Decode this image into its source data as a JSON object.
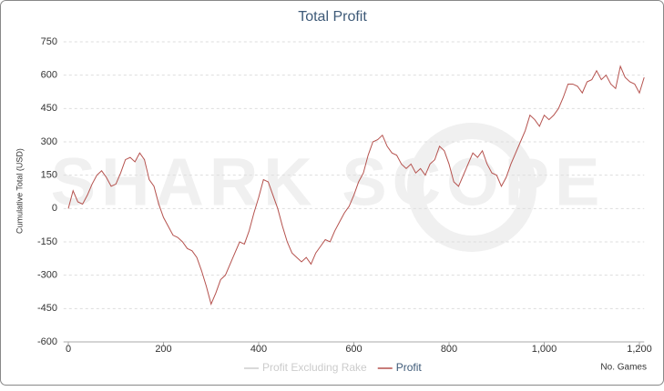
{
  "chart_data": {
    "type": "line",
    "title": "Total Profit",
    "y_label": "Cumulative Total (USD)",
    "x_label": "No. Games",
    "watermark": "SHARK SCOPE",
    "x": [
      0,
      10,
      20,
      30,
      40,
      50,
      60,
      70,
      80,
      90,
      100,
      110,
      120,
      130,
      140,
      150,
      160,
      170,
      180,
      190,
      200,
      210,
      220,
      230,
      240,
      250,
      260,
      270,
      280,
      290,
      300,
      310,
      320,
      330,
      340,
      350,
      360,
      370,
      380,
      390,
      400,
      410,
      420,
      430,
      440,
      450,
      460,
      470,
      480,
      490,
      500,
      510,
      520,
      530,
      540,
      550,
      560,
      570,
      580,
      590,
      600,
      610,
      620,
      630,
      640,
      650,
      660,
      670,
      680,
      690,
      700,
      710,
      720,
      730,
      740,
      750,
      760,
      770,
      780,
      790,
      800,
      810,
      820,
      830,
      840,
      850,
      860,
      870,
      880,
      890,
      900,
      910,
      920,
      930,
      940,
      950,
      960,
      970,
      980,
      990,
      1000,
      1010,
      1020,
      1030,
      1040,
      1050,
      1060,
      1070,
      1080,
      1090,
      1100,
      1110,
      1120,
      1130,
      1140,
      1150,
      1160,
      1170,
      1180,
      1190,
      1200,
      1210
    ],
    "series": [
      {
        "name": "Profit Excluding Rake",
        "color": "#cccccc",
        "visible": false
      },
      {
        "name": "Profit",
        "color": "#b5524e",
        "visible": true,
        "values": [
          0,
          80,
          30,
          20,
          60,
          110,
          150,
          170,
          140,
          100,
          110,
          160,
          220,
          230,
          210,
          250,
          220,
          130,
          100,
          20,
          -40,
          -80,
          -120,
          -130,
          -150,
          -180,
          -190,
          -220,
          -280,
          -350,
          -430,
          -380,
          -320,
          -300,
          -250,
          -200,
          -150,
          -160,
          -100,
          -20,
          50,
          130,
          120,
          60,
          0,
          -80,
          -150,
          -200,
          -220,
          -240,
          -220,
          -250,
          -200,
          -170,
          -140,
          -150,
          -100,
          -60,
          -20,
          10,
          60,
          120,
          160,
          240,
          300,
          310,
          330,
          280,
          250,
          240,
          200,
          180,
          200,
          160,
          180,
          150,
          200,
          220,
          280,
          260,
          200,
          120,
          100,
          150,
          200,
          250,
          230,
          260,
          200,
          160,
          150,
          100,
          140,
          200,
          250,
          300,
          350,
          420,
          400,
          370,
          420,
          400,
          420,
          450,
          500,
          560,
          560,
          550,
          520,
          570,
          580,
          620,
          580,
          600,
          560,
          540,
          640,
          590,
          570,
          560,
          520,
          590
        ]
      }
    ],
    "xlim": [
      -10,
      1210
    ],
    "xticks": [
      0,
      200,
      400,
      600,
      800,
      {
        "value": 1000,
        "label": "1,000"
      },
      {
        "value": 1200,
        "label": "1,200"
      }
    ],
    "ylim": [
      -600,
      750
    ],
    "yticks": [
      -600,
      -450,
      -300,
      -150,
      0,
      150,
      300,
      450,
      600,
      750
    ],
    "grid": true
  }
}
